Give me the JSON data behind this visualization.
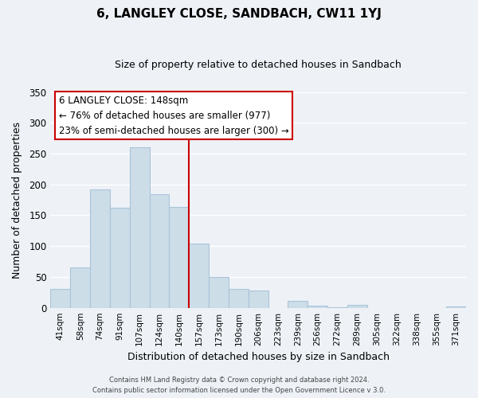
{
  "title": "6, LANGLEY CLOSE, SANDBACH, CW11 1YJ",
  "subtitle": "Size of property relative to detached houses in Sandbach",
  "xlabel": "Distribution of detached houses by size in Sandbach",
  "ylabel": "Number of detached properties",
  "bar_color": "#ccdde8",
  "bar_edge_color": "#aac4d8",
  "categories": [
    "41sqm",
    "58sqm",
    "74sqm",
    "91sqm",
    "107sqm",
    "124sqm",
    "140sqm",
    "157sqm",
    "173sqm",
    "190sqm",
    "206sqm",
    "223sqm",
    "239sqm",
    "256sqm",
    "272sqm",
    "289sqm",
    "305sqm",
    "322sqm",
    "338sqm",
    "355sqm",
    "371sqm"
  ],
  "values": [
    30,
    65,
    192,
    162,
    260,
    184,
    163,
    104,
    50,
    30,
    28,
    0,
    11,
    4,
    1,
    5,
    0,
    0,
    0,
    0,
    2
  ],
  "ylim": [
    0,
    350
  ],
  "yticks": [
    0,
    50,
    100,
    150,
    200,
    250,
    300,
    350
  ],
  "vline_color": "#cc0000",
  "annotation_title": "6 LANGLEY CLOSE: 148sqm",
  "annotation_line1": "← 76% of detached houses are smaller (977)",
  "annotation_line2": "23% of semi-detached houses are larger (300) →",
  "annotation_box_color": "#ffffff",
  "annotation_box_edge": "#cc0000",
  "footer1": "Contains HM Land Registry data © Crown copyright and database right 2024.",
  "footer2": "Contains public sector information licensed under the Open Government Licence v 3.0.",
  "background_color": "#eef2f7",
  "grid_color": "#ffffff"
}
